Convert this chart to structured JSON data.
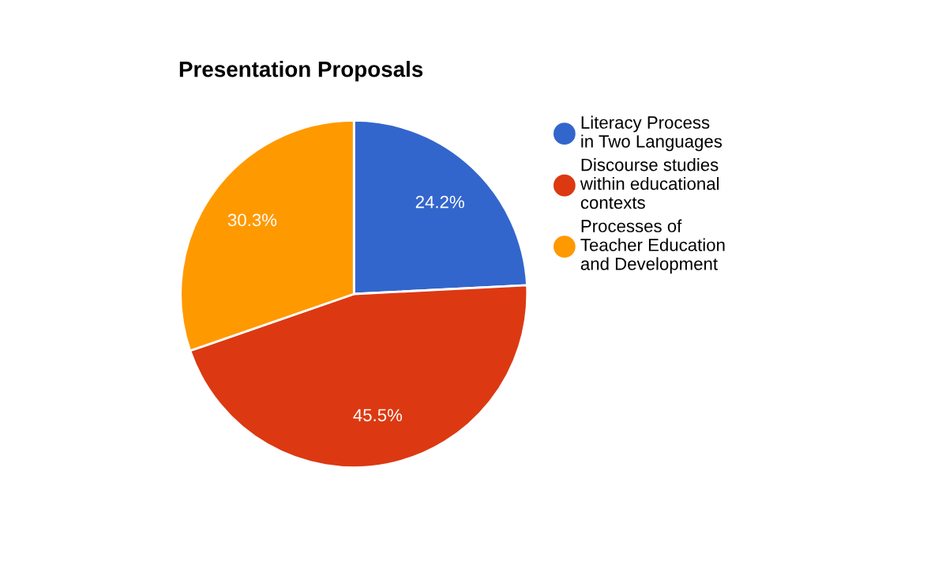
{
  "chart_data": {
    "type": "pie",
    "title": "Presentation Proposals",
    "categories": [
      "Literacy Process in Two Languages",
      "Discourse studies within educational contexts",
      "Processes of Teacher Education and Development"
    ],
    "values": [
      24.2,
      45.5,
      30.3
    ],
    "colors": [
      "#3366cc",
      "#dc3912",
      "#ff9900"
    ],
    "value_labels": [
      "24.2%",
      "45.5%",
      "30.3%"
    ],
    "legend": "right"
  }
}
